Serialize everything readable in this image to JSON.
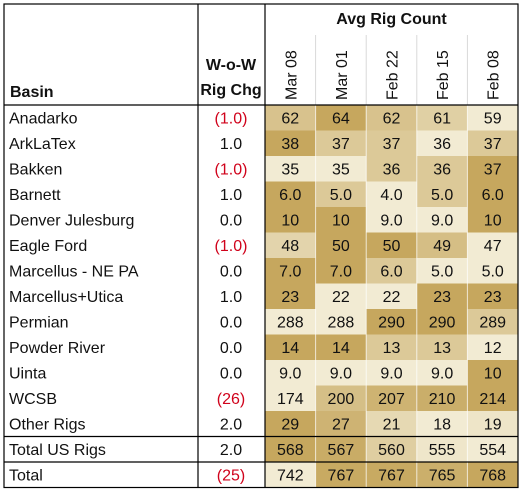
{
  "table": {
    "header": {
      "basin": "Basin",
      "wow_line1": "W-o-W",
      "wow_line2": "Rig Chg",
      "avg_group": "Avg Rig Count",
      "dates": [
        "Mar 08",
        "Mar 01",
        "Feb 22",
        "Feb 15",
        "Feb 08"
      ]
    },
    "rows": [
      {
        "basin": "Anadarko",
        "chg": "(1.0)",
        "negative": true,
        "counts": [
          "62",
          "64",
          "62",
          "61",
          "59"
        ]
      },
      {
        "basin": "ArkLaTex",
        "chg": "1.0",
        "negative": false,
        "counts": [
          "38",
          "37",
          "37",
          "36",
          "37"
        ]
      },
      {
        "basin": "Bakken",
        "chg": "(1.0)",
        "negative": true,
        "counts": [
          "35",
          "35",
          "36",
          "36",
          "37"
        ]
      },
      {
        "basin": "Barnett",
        "chg": "1.0",
        "negative": false,
        "counts": [
          "6.0",
          "5.0",
          "4.0",
          "5.0",
          "6.0"
        ]
      },
      {
        "basin": "Denver Julesburg",
        "chg": "0.0",
        "negative": false,
        "counts": [
          "10",
          "10",
          "9.0",
          "9.0",
          "10"
        ]
      },
      {
        "basin": "Eagle Ford",
        "chg": "(1.0)",
        "negative": true,
        "counts": [
          "48",
          "50",
          "50",
          "49",
          "47"
        ]
      },
      {
        "basin": "Marcellus - NE PA",
        "chg": "0.0",
        "negative": false,
        "counts": [
          "7.0",
          "7.0",
          "6.0",
          "5.0",
          "5.0"
        ]
      },
      {
        "basin": "Marcellus+Utica",
        "chg": "1.0",
        "negative": false,
        "counts": [
          "23",
          "22",
          "22",
          "23",
          "23"
        ]
      },
      {
        "basin": "Permian",
        "chg": "0.0",
        "negative": false,
        "counts": [
          "288",
          "288",
          "290",
          "290",
          "289"
        ]
      },
      {
        "basin": "Powder River",
        "chg": "0.0",
        "negative": false,
        "counts": [
          "14",
          "14",
          "13",
          "13",
          "12"
        ]
      },
      {
        "basin": "Uinta",
        "chg": "0.0",
        "negative": false,
        "counts": [
          "9.0",
          "9.0",
          "9.0",
          "9.0",
          "10"
        ]
      },
      {
        "basin": "WCSB",
        "chg": "(26)",
        "negative": true,
        "counts": [
          "174",
          "200",
          "207",
          "210",
          "214"
        ]
      },
      {
        "basin": "Other Rigs",
        "chg": "2.0",
        "negative": false,
        "counts": [
          "29",
          "27",
          "21",
          "18",
          "19"
        ]
      },
      {
        "basin": "Total US Rigs",
        "chg": "2.0",
        "negative": false,
        "counts": [
          "568",
          "567",
          "560",
          "555",
          "554"
        ]
      },
      {
        "basin": "Total",
        "chg": "(25)",
        "negative": true,
        "counts": [
          "742",
          "767",
          "767",
          "765",
          "768"
        ]
      }
    ],
    "colors": {
      "heat_low": "#f6f1dd",
      "heat_high": "#c6a75e",
      "negative_text": "#d0021b",
      "grid": "#d9d9d9",
      "border": "#000000"
    }
  },
  "chart_data": {
    "type": "table",
    "columns": [
      "Basin",
      "W-o-W Rig Chg",
      "Mar 08",
      "Mar 01",
      "Feb 22",
      "Feb 15",
      "Feb 08"
    ],
    "rows": [
      [
        "Anadarko",
        -1.0,
        62,
        64,
        62,
        61,
        59
      ],
      [
        "ArkLaTex",
        1.0,
        38,
        37,
        37,
        36,
        37
      ],
      [
        "Bakken",
        -1.0,
        35,
        35,
        36,
        36,
        37
      ],
      [
        "Barnett",
        1.0,
        6.0,
        5.0,
        4.0,
        5.0,
        6.0
      ],
      [
        "Denver Julesburg",
        0.0,
        10,
        10,
        9.0,
        9.0,
        10
      ],
      [
        "Eagle Ford",
        -1.0,
        48,
        50,
        50,
        49,
        47
      ],
      [
        "Marcellus - NE PA",
        0.0,
        7.0,
        7.0,
        6.0,
        5.0,
        5.0
      ],
      [
        "Marcellus+Utica",
        1.0,
        23,
        22,
        22,
        23,
        23
      ],
      [
        "Permian",
        0.0,
        288,
        288,
        290,
        290,
        289
      ],
      [
        "Powder River",
        0.0,
        14,
        14,
        13,
        13,
        12
      ],
      [
        "Uinta",
        0.0,
        9.0,
        9.0,
        9.0,
        9.0,
        10
      ],
      [
        "WCSB",
        -26,
        174,
        200,
        207,
        210,
        214
      ],
      [
        "Other Rigs",
        2.0,
        29,
        27,
        21,
        18,
        19
      ],
      [
        "Total US Rigs",
        2.0,
        568,
        567,
        560,
        555,
        554
      ],
      [
        "Total",
        -25,
        742,
        767,
        767,
        765,
        768
      ]
    ],
    "title": "Avg Rig Count"
  }
}
